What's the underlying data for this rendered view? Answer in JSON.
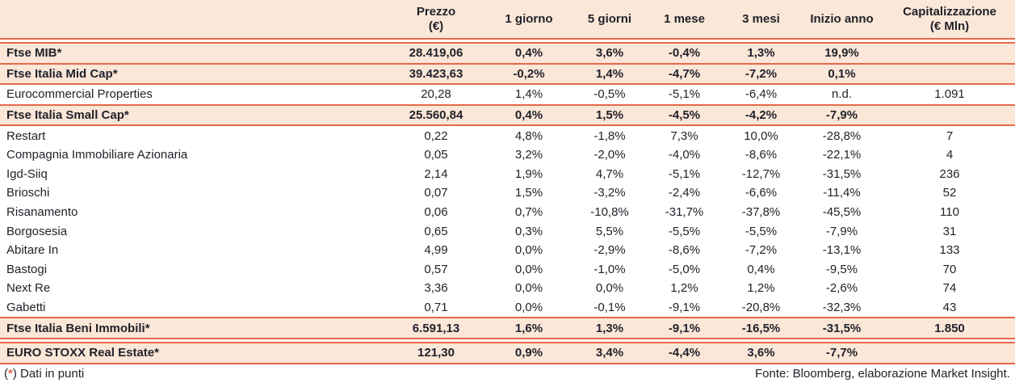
{
  "colors": {
    "row_highlight": "#fbe7d8",
    "divider_accent": "#e7684a",
    "text": "#22222b"
  },
  "table": {
    "columns": [
      {
        "line1": "Prezzo",
        "line2": "(€)"
      },
      {
        "line1": "1 giorno",
        "line2": ""
      },
      {
        "line1": "5 giorni",
        "line2": ""
      },
      {
        "line1": "1 mese",
        "line2": ""
      },
      {
        "line1": "3 mesi",
        "line2": ""
      },
      {
        "line1": "Inizio anno",
        "line2": ""
      },
      {
        "line1": "Capitalizzazione",
        "line2": "(€ Mln)"
      }
    ],
    "rows": [
      {
        "name": "Ftse MIB*",
        "prezzo": "28.419,06",
        "g1": "0,4%",
        "g5": "3,6%",
        "m1": "-0,4%",
        "m3": "1,3%",
        "ytd": "19,9%",
        "cap": "",
        "emphasis": true,
        "divider_after": "single"
      },
      {
        "name": "Ftse Italia Mid Cap*",
        "prezzo": "39.423,63",
        "g1": "-0,2%",
        "g5": "1,4%",
        "m1": "-4,7%",
        "m3": "-7,2%",
        "ytd": "0,1%",
        "cap": "",
        "emphasis": true,
        "divider_after": "single"
      },
      {
        "name": "Eurocommercial Properties",
        "prezzo": "20,28",
        "g1": "1,4%",
        "g5": "-0,5%",
        "m1": "-5,1%",
        "m3": "-6,4%",
        "ytd": "n.d.",
        "cap": "1.091",
        "emphasis": false,
        "divider_after": "single"
      },
      {
        "name": "Ftse Italia Small Cap*",
        "prezzo": "25.560,84",
        "g1": "0,4%",
        "g5": "1,5%",
        "m1": "-4,5%",
        "m3": "-4,2%",
        "ytd": "-7,9%",
        "cap": "",
        "emphasis": true,
        "divider_after": "single"
      },
      {
        "name": "Restart",
        "prezzo": "0,22",
        "g1": "4,8%",
        "g5": "-1,8%",
        "m1": "7,3%",
        "m3": "10,0%",
        "ytd": "-28,8%",
        "cap": "7",
        "emphasis": false,
        "divider_after": "none"
      },
      {
        "name": "Compagnia Immobiliare Azionaria",
        "prezzo": "0,05",
        "g1": "3,2%",
        "g5": "-2,0%",
        "m1": "-4,0%",
        "m3": "-8,6%",
        "ytd": "-22,1%",
        "cap": "4",
        "emphasis": false,
        "divider_after": "none"
      },
      {
        "name": "Igd-Siiq",
        "prezzo": "2,14",
        "g1": "1,9%",
        "g5": "4,7%",
        "m1": "-5,1%",
        "m3": "-12,7%",
        "ytd": "-31,5%",
        "cap": "236",
        "emphasis": false,
        "divider_after": "none"
      },
      {
        "name": "Brioschi",
        "prezzo": "0,07",
        "g1": "1,5%",
        "g5": "-3,2%",
        "m1": "-2,4%",
        "m3": "-6,6%",
        "ytd": "-11,4%",
        "cap": "52",
        "emphasis": false,
        "divider_after": "none"
      },
      {
        "name": "Risanamento",
        "prezzo": "0,06",
        "g1": "0,7%",
        "g5": "-10,8%",
        "m1": "-31,7%",
        "m3": "-37,8%",
        "ytd": "-45,5%",
        "cap": "110",
        "emphasis": false,
        "divider_after": "none"
      },
      {
        "name": "Borgosesia",
        "prezzo": "0,65",
        "g1": "0,3%",
        "g5": "5,5%",
        "m1": "-5,5%",
        "m3": "-5,5%",
        "ytd": "-7,9%",
        "cap": "31",
        "emphasis": false,
        "divider_after": "none"
      },
      {
        "name": "Abitare In",
        "prezzo": "4,99",
        "g1": "0,0%",
        "g5": "-2,9%",
        "m1": "-8,6%",
        "m3": "-7,2%",
        "ytd": "-13,1%",
        "cap": "133",
        "emphasis": false,
        "divider_after": "none"
      },
      {
        "name": "Bastogi",
        "prezzo": "0,57",
        "g1": "0,0%",
        "g5": "-1,0%",
        "m1": "-5,0%",
        "m3": "0,4%",
        "ytd": "-9,5%",
        "cap": "70",
        "emphasis": false,
        "divider_after": "none"
      },
      {
        "name": "Next Re",
        "prezzo": "3,36",
        "g1": "0,0%",
        "g5": "0,0%",
        "m1": "1,2%",
        "m3": "1,2%",
        "ytd": "-2,6%",
        "cap": "74",
        "emphasis": false,
        "divider_after": "none"
      },
      {
        "name": "Gabetti",
        "prezzo": "0,71",
        "g1": "0,0%",
        "g5": "-0,1%",
        "m1": "-9,1%",
        "m3": "-20,8%",
        "ytd": "-32,3%",
        "cap": "43",
        "emphasis": false,
        "divider_after": "single"
      },
      {
        "name": "Ftse Italia Beni Immobili*",
        "prezzo": "6.591,13",
        "g1": "1,6%",
        "g5": "1,3%",
        "m1": "-9,1%",
        "m3": "-16,5%",
        "ytd": "-31,5%",
        "cap": "1.850",
        "emphasis": true,
        "divider_after": "double"
      },
      {
        "name": "EURO STOXX Real Estate*",
        "prezzo": "121,30",
        "g1": "0,9%",
        "g5": "3,4%",
        "m1": "-4,4%",
        "m3": "3,6%",
        "ytd": "-7,7%",
        "cap": "",
        "emphasis": true,
        "divider_after": "single"
      }
    ]
  },
  "footer": {
    "note_open": "(",
    "note_star": "*",
    "note_rest": ") Dati in punti",
    "source": "Fonte: Bloomberg, elaborazione Market Insight."
  }
}
